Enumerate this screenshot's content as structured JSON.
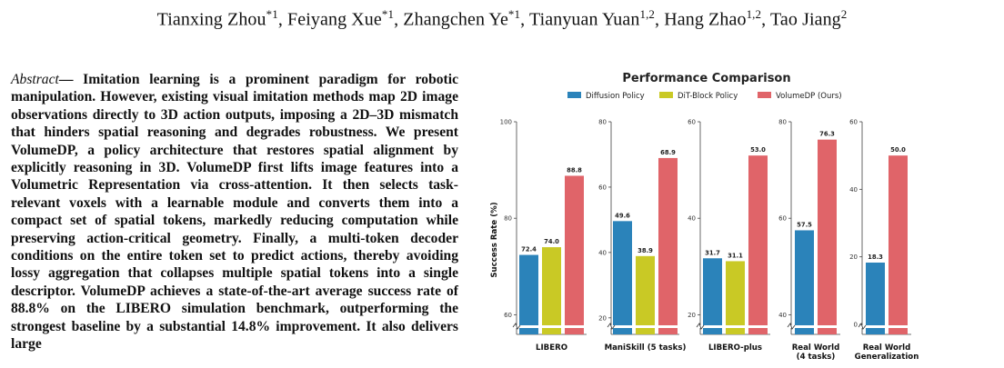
{
  "authors": [
    {
      "name": "Tianxing Zhou",
      "sup": "*1"
    },
    {
      "name": "Feiyang Xue",
      "sup": "*1"
    },
    {
      "name": "Zhangchen Ye",
      "sup": "*1"
    },
    {
      "name": "Tianyuan Yuan",
      "sup": "1,2"
    },
    {
      "name": "Hang Zhao",
      "sup": "1,2"
    },
    {
      "name": "Tao Jiang",
      "sup": "2"
    }
  ],
  "abstract": {
    "heading": "Abstract",
    "text": "— Imitation learning is a prominent paradigm for robotic manipulation. However, existing visual imitation methods map 2D image observations directly to 3D action outputs, imposing a 2D–3D mismatch that hinders spatial reasoning and degrades robustness. We present VolumeDP, a policy architecture that restores spatial alignment by explicitly reasoning in 3D. VolumeDP first lifts image features into a Volumetric Representation via cross-attention. It then selects task-relevant voxels with a learnable module and converts them into a compact set of spatial tokens, markedly reducing computation while preserving action-critical geometry. Finally, a multi-token decoder conditions on the entire token set to predict actions, thereby avoiding lossy aggregation that collapses multiple spatial tokens into a single descriptor. VolumeDP achieves a state-of-the-art average success rate of 88.8% on the LIBERO simulation benchmark, outperforming the strongest baseline by a substantial 14.8% improvement. It also delivers large"
  },
  "chart_data": {
    "type": "bar",
    "title": "Performance Comparison",
    "ylabel": "Success Rate (%)",
    "colors": {
      "Diffusion Policy": "#2b83ba",
      "DiT-Block Policy": "#c9c925",
      "VolumeDP (Ours)": "#e06469"
    },
    "legend": [
      "Diffusion Policy",
      "DiT-Block Policy",
      "VolumeDP (Ours)"
    ],
    "panels": [
      {
        "category": "LIBERO",
        "ylim": [
          58,
          100
        ],
        "ticks": [
          60,
          80,
          100
        ],
        "values": [
          {
            "series": "Diffusion Policy",
            "value": 72.4,
            "label": "72.4"
          },
          {
            "series": "DiT-Block Policy",
            "value": 74.0,
            "label": "74.0"
          },
          {
            "series": "VolumeDP (Ours)",
            "value": 88.8,
            "label": "88.8"
          }
        ]
      },
      {
        "category": "ManiSkill (5 tasks)",
        "ylim": [
          18,
          80
        ],
        "ticks": [
          20,
          40,
          60,
          80
        ],
        "values": [
          {
            "series": "Diffusion Policy",
            "value": 49.6,
            "label": "49.6"
          },
          {
            "series": "DiT-Block Policy",
            "value": 38.9,
            "label": "38.9"
          },
          {
            "series": "VolumeDP (Ours)",
            "value": 68.9,
            "label": "68.9"
          }
        ]
      },
      {
        "category": "LIBERO-plus",
        "ylim": [
          18,
          60
        ],
        "ticks": [
          20,
          40,
          60
        ],
        "values": [
          {
            "series": "Diffusion Policy",
            "value": 31.7,
            "label": "31.7"
          },
          {
            "series": "DiT-Block Policy",
            "value": 31.1,
            "label": "31.1"
          },
          {
            "series": "VolumeDP (Ours)",
            "value": 53.0,
            "label": "53.0"
          }
        ]
      },
      {
        "category": "Real World\n(4 tasks)",
        "ylim": [
          38,
          80
        ],
        "ticks": [
          40,
          60,
          80
        ],
        "values": [
          {
            "series": "Diffusion Policy",
            "value": 57.5,
            "label": "57.5"
          },
          {
            "series": "VolumeDP (Ours)",
            "value": 76.3,
            "label": "76.3"
          }
        ]
      },
      {
        "category": "Real World\nGeneralization",
        "ylim": [
          0,
          60
        ],
        "ticks": [
          0,
          20,
          40,
          60
        ],
        "values": [
          {
            "series": "Diffusion Policy",
            "value": 18.3,
            "label": "18.3"
          },
          {
            "series": "VolumeDP (Ours)",
            "value": 50.0,
            "label": "50.0"
          }
        ]
      }
    ]
  }
}
